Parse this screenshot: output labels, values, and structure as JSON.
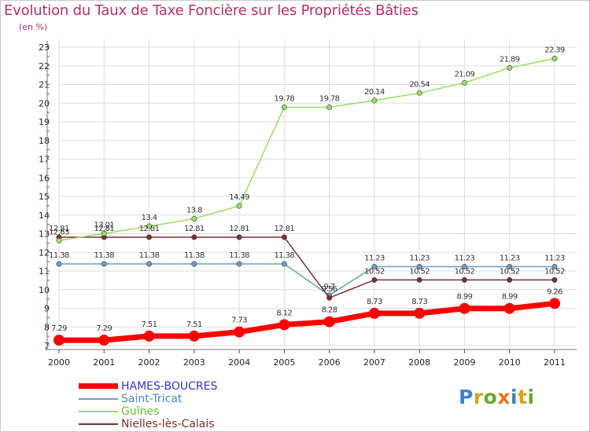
{
  "title": "Evolution du Taux de Taxe Foncière sur les Propriétés Bâties",
  "unit_label": "(en %)",
  "logo": {
    "letters": [
      {
        "ch": "P",
        "color": "#3a84c8"
      },
      {
        "ch": "r",
        "color": "#d4a21c"
      },
      {
        "ch": "o",
        "color": "#6aaa2a"
      },
      {
        "ch": "x",
        "color": "#e07820"
      },
      {
        "ch": "i",
        "color": "#3a84c8"
      },
      {
        "ch": "t",
        "color": "#d4a21c"
      },
      {
        "ch": "i",
        "color": "#6aaa2a"
      }
    ]
  },
  "chart_data": {
    "type": "line",
    "title": "Evolution du Taux de Taxe Foncière sur les Propriétés Bâties",
    "ylabel": "(en %)",
    "xlabel": "",
    "x": [
      "2000",
      "2001",
      "2002",
      "2003",
      "2004",
      "2005",
      "2006",
      "2007",
      "2008",
      "2009",
      "2010",
      "2011"
    ],
    "ylim": [
      7,
      23
    ],
    "yticks": [
      7,
      8,
      9,
      10,
      11,
      12,
      13,
      14,
      15,
      16,
      17,
      18,
      19,
      20,
      21,
      22,
      23
    ],
    "grid": true,
    "legend": "bottom-left",
    "series": [
      {
        "name": "HAMES-BOUCRES",
        "color": "#ff0000",
        "text_color": "#3333cc",
        "values": [
          7.29,
          7.29,
          7.51,
          7.51,
          7.73,
          8.12,
          8.28,
          8.73,
          8.73,
          8.99,
          8.99,
          9.26
        ],
        "labels": [
          "7.29",
          "7.29",
          "7.51",
          "7.51",
          "7.73",
          "8.12",
          "8.28",
          "8.73",
          "8.73",
          "8.99",
          "8.99",
          "9.26"
        ]
      },
      {
        "name": "Saint-Tricat",
        "color": "#6a9cc8",
        "text_color": "#4a86c8",
        "values": [
          11.38,
          11.38,
          11.38,
          11.38,
          11.38,
          11.38,
          9.7,
          11.23,
          11.23,
          11.23,
          11.23,
          11.23
        ],
        "labels": [
          "11.38",
          "11.38",
          "11.38",
          "11.38",
          "11.38",
          "11.38",
          "9.7",
          "11.23",
          "11.23",
          "11.23",
          "11.23",
          "11.23"
        ]
      },
      {
        "name": "Guînes",
        "color": "#99dd66",
        "text_color": "#66bb33",
        "values": [
          12.63,
          13.01,
          13.4,
          13.8,
          14.49,
          19.78,
          19.78,
          20.14,
          20.54,
          21.09,
          21.89,
          22.39
        ],
        "labels": [
          "12.63",
          "13.01",
          "13.4",
          "13.8",
          "14.49",
          "19.78",
          "19.78",
          "20.14",
          "20.54",
          "21.09",
          "21.89",
          "22.39"
        ]
      },
      {
        "name": "Nielles-lès-Calais",
        "color": "#7a3030",
        "text_color": "#7a3030",
        "values": [
          12.81,
          12.81,
          12.81,
          12.81,
          12.81,
          12.81,
          9.56,
          10.52,
          10.52,
          10.52,
          10.52,
          10.52
        ],
        "labels": [
          "12.81",
          "12.81",
          "12.81",
          "12.81",
          "12.81",
          "12.81",
          "9.56",
          "10.52",
          "10.52",
          "10.52",
          "10.52",
          "10.52"
        ]
      }
    ]
  }
}
